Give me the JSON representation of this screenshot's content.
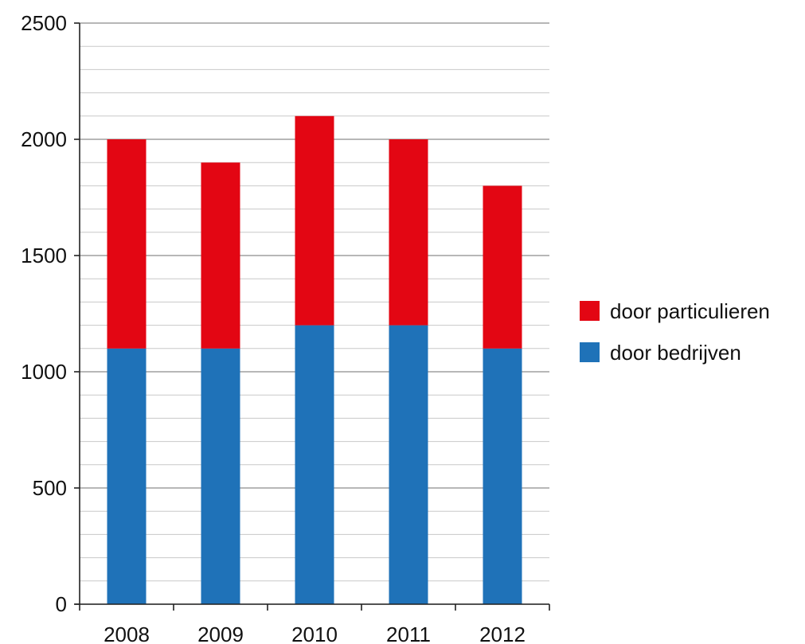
{
  "chart_data": {
    "type": "bar",
    "stacked": true,
    "categories": [
      "2008",
      "2009",
      "2010",
      "2011",
      "2012"
    ],
    "series": [
      {
        "name": "door bedrijven",
        "values": [
          1100,
          1100,
          1200,
          1200,
          1100
        ],
        "color": "#1f72b8"
      },
      {
        "name": "door particulieren",
        "values": [
          900,
          800,
          900,
          800,
          700
        ],
        "color": "#e30613"
      }
    ],
    "title": "",
    "xlabel": "",
    "ylabel": "",
    "ylim": [
      0,
      2500
    ],
    "y_major_step": 500,
    "y_minor_step": 100,
    "y_ticks": [
      "0",
      "500",
      "1000",
      "1500",
      "2000",
      "2500"
    ],
    "grid": true,
    "legend": {
      "placement": "right",
      "entries": [
        "door particulieren",
        "door bedrijven"
      ]
    }
  }
}
